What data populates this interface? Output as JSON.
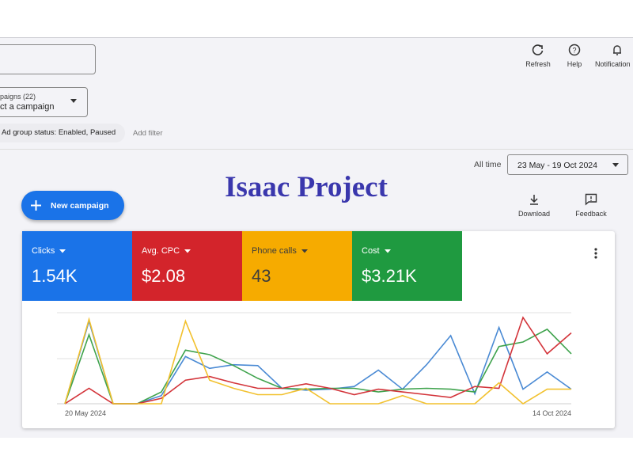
{
  "header": {
    "actions": [
      "Refresh",
      "Help",
      "Notification"
    ]
  },
  "filters": {
    "campaign_count": "paigns (22)",
    "campaign_select": "ct a campaign",
    "ad_group_status": "Ad group status: Enabled, Paused",
    "add_filter": "Add filter"
  },
  "date_range": {
    "label": "All time",
    "value": "23 May - 19 Oct 2024"
  },
  "watermark": "Isaac Project",
  "new_campaign": "New campaign",
  "tools": [
    "Download",
    "Feedback"
  ],
  "metrics": [
    {
      "name": "Clicks",
      "value": "1.54K",
      "color": "#1a73e8",
      "text_color": "#ffffff"
    },
    {
      "name": "Avg. CPC",
      "value": "$2.08",
      "color": "#d3242b",
      "text_color": "#ffffff"
    },
    {
      "name": "Phone calls",
      "value": "43",
      "color": "#f6ab00",
      "text_color": "#3c3c3c"
    },
    {
      "name": "Cost",
      "value": "$3.21K",
      "color": "#1f9a40",
      "text_color": "#ffffff"
    }
  ],
  "chart_data": {
    "type": "line",
    "categories": [
      "20 May 2024",
      null,
      null,
      null,
      null,
      null,
      null,
      null,
      null,
      null,
      null,
      null,
      null,
      null,
      null,
      null,
      null,
      null,
      null,
      null,
      null,
      "14 Oct 2024"
    ],
    "series": [
      {
        "color": "#4a8ad4",
        "values": [
          0,
          91,
          0,
          0,
          9,
          52,
          39,
          43,
          42,
          17,
          15,
          16,
          19,
          37,
          16,
          43,
          75,
          11,
          84,
          16,
          35,
          16
        ]
      },
      {
        "color": "#3fa34d",
        "values": [
          0,
          76,
          0,
          0,
          13,
          59,
          54,
          42,
          28,
          17,
          16,
          17,
          17,
          13,
          16,
          17,
          16,
          13,
          63,
          68,
          82,
          55
        ]
      },
      {
        "color": "#d3343a",
        "values": [
          0,
          17,
          0,
          0,
          6,
          26,
          30,
          23,
          17,
          17,
          22,
          17,
          10,
          16,
          13,
          10,
          7,
          19,
          17,
          95,
          55,
          78
        ]
      },
      {
        "color": "#f2c12e",
        "values": [
          0,
          93,
          0,
          0,
          0,
          91,
          26,
          17,
          10,
          10,
          17,
          0,
          0,
          0,
          9,
          0,
          0,
          0,
          23,
          0,
          16,
          16
        ]
      }
    ]
  }
}
